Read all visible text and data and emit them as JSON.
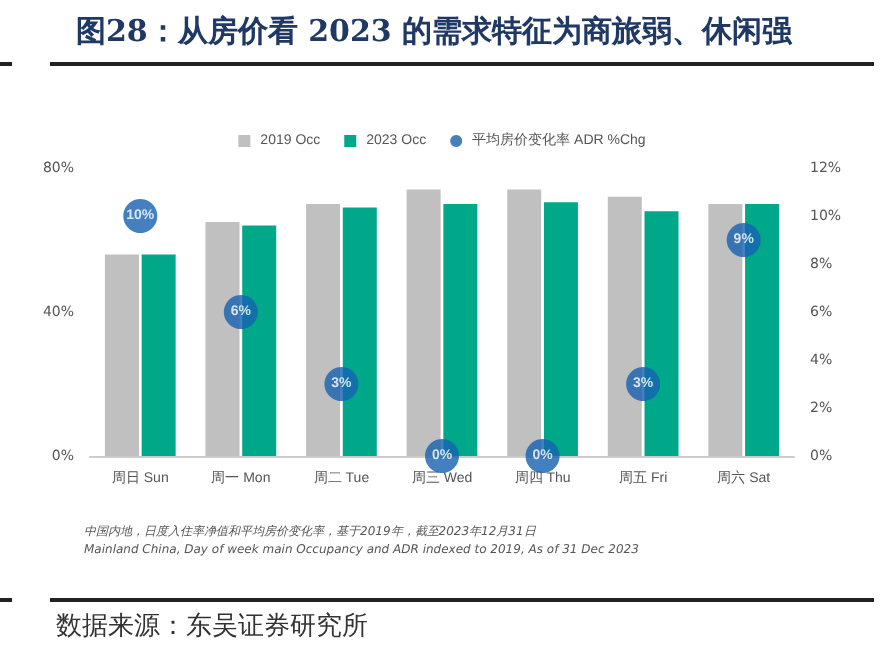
{
  "chart_data": {
    "type": "bar",
    "title": "图28：从房价看 2023 的需求特征为商旅弱、休闲强",
    "categories": [
      "周日 Sun",
      "周一 Mon",
      "周二 Tue",
      "周三 Wed",
      "周四 Thu",
      "周五 Fri",
      "周六 Sat"
    ],
    "series": [
      {
        "name": "2019 Occ",
        "color": "#c0c0c0",
        "values": [
          56,
          65,
          70,
          74,
          74,
          72,
          70
        ]
      },
      {
        "name": "2023 Occ",
        "color": "#00a88a",
        "values": [
          56,
          64,
          69,
          70,
          70.5,
          68,
          70
        ]
      },
      {
        "name": "平均房价变化率 ADR %Chg",
        "type": "scatter",
        "axis": "y2",
        "color": "#1560b0",
        "values": [
          10,
          6,
          3,
          0,
          0,
          3,
          9
        ],
        "value_labels": [
          "10%",
          "6%",
          "3%",
          "0%",
          "0%",
          "3%",
          "9%"
        ]
      }
    ],
    "ylim": [
      0,
      80
    ],
    "yticks": [
      {
        "value": 0,
        "label": "0%"
      },
      {
        "value": 40,
        "label": "40%"
      },
      {
        "value": 80,
        "label": "80%"
      }
    ],
    "y2lim": [
      0,
      12
    ],
    "y2ticks": [
      {
        "value": 0,
        "label": "0%"
      },
      {
        "value": 2,
        "label": "2%"
      },
      {
        "value": 4,
        "label": "4%"
      },
      {
        "value": 6,
        "label": "6%"
      },
      {
        "value": 8,
        "label": "8%"
      },
      {
        "value": 10,
        "label": "10%"
      },
      {
        "value": 12,
        "label": "12%"
      }
    ],
    "marker": "circle",
    "grid": false,
    "legend": "top",
    "annotations": [
      "中国内地，日度入住率净值和平均房价变化率，基于2019年，截至2023年12月31日",
      "Mainland China, Day of week main Occupancy and ADR indexed to 2019, As of 31 Dec 2023",
      "数据来源：东吴证券研究所"
    ]
  }
}
